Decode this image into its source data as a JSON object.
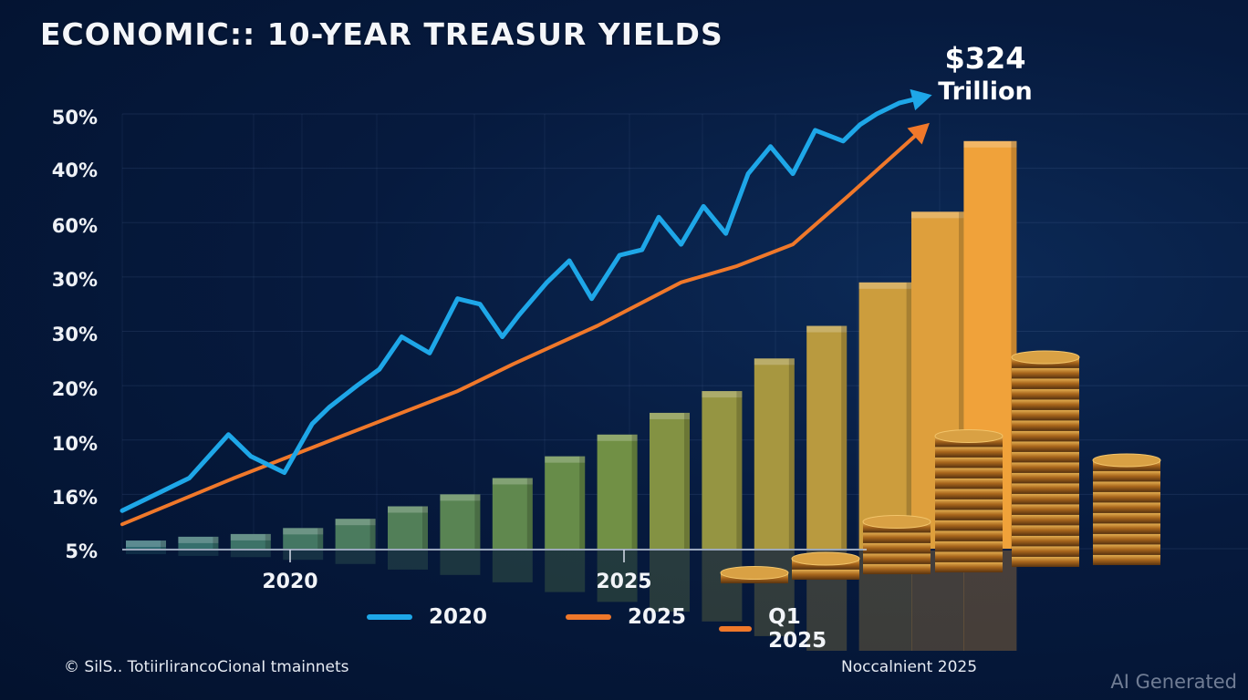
{
  "title": "ECONOMIC:: 10-YEAR TREASUR YIELDS",
  "callout": {
    "amount": "$324",
    "unit": "Trillion"
  },
  "footer": {
    "source": "© SilS.. TotiirlirancoCionaI tmainnets",
    "date": "Noccalnient 2025",
    "watermark": "AI Generated"
  },
  "colors": {
    "line_2020": "#1ea7e8",
    "line_2025": "#f0782a",
    "line_q1_2025": "#f0782a",
    "bar_start": "#2f6b72",
    "bar_mid": "#6d8f45",
    "bar_end": "#f0a23a",
    "coin": "#c98a2e"
  },
  "chart_data": {
    "type": "bar+line",
    "title": "ECONOMIC:: 10-YEAR TREASUR YIELDS",
    "ytick_labels": [
      "50%",
      "40%",
      "60%",
      "30%",
      "30%",
      "20%",
      "10%",
      "16%",
      "5%"
    ],
    "y_levels": [
      8,
      7,
      6,
      5,
      4,
      3,
      2,
      1,
      0
    ],
    "ylim": [
      0,
      8
    ],
    "xtick_labels": [
      "2020",
      "2025"
    ],
    "xtick_positions": [
      3.3,
      9.5
    ],
    "grid": true,
    "bars": {
      "count": 17,
      "values": [
        0.15,
        0.22,
        0.27,
        0.38,
        0.55,
        0.78,
        1.0,
        1.3,
        1.7,
        2.1,
        2.5,
        2.9,
        3.5,
        4.1,
        4.9,
        6.2,
        7.5
      ]
    },
    "series": [
      {
        "name": "2020",
        "x": [
          0,
          0.6,
          1.2,
          1.9,
          2.3,
          2.9,
          3.4,
          3.7,
          4.2,
          4.6,
          5.0,
          5.5,
          6.0,
          6.4,
          6.8,
          7.1,
          7.6,
          8.0,
          8.4,
          8.9,
          9.3,
          9.6,
          10.0,
          10.4,
          10.8,
          11.2,
          11.6,
          12.0,
          12.4,
          12.9,
          13.2,
          13.5,
          13.9,
          14.3
        ],
        "values": [
          0.7,
          1.0,
          1.3,
          2.1,
          1.7,
          1.4,
          2.3,
          2.6,
          3.0,
          3.3,
          3.9,
          3.6,
          4.6,
          4.5,
          3.9,
          4.3,
          4.9,
          5.3,
          4.6,
          5.4,
          5.5,
          6.1,
          5.6,
          6.3,
          5.8,
          6.9,
          7.4,
          6.9,
          7.7,
          7.5,
          7.8,
          8.0,
          8.2,
          8.3
        ]
      },
      {
        "name": "2025",
        "x": [
          0,
          2,
          4,
          6,
          7,
          8.5,
          10,
          11,
          12,
          13,
          14.3
        ],
        "values": [
          0.45,
          1.3,
          2.1,
          2.9,
          3.4,
          4.1,
          4.9,
          5.2,
          5.6,
          6.5,
          7.7
        ]
      },
      {
        "name": "Q1 2025",
        "x": [],
        "values": []
      }
    ],
    "legend": {
      "placement": "bottom",
      "entries": [
        "2020",
        "2025",
        "Q1 2025"
      ]
    }
  }
}
